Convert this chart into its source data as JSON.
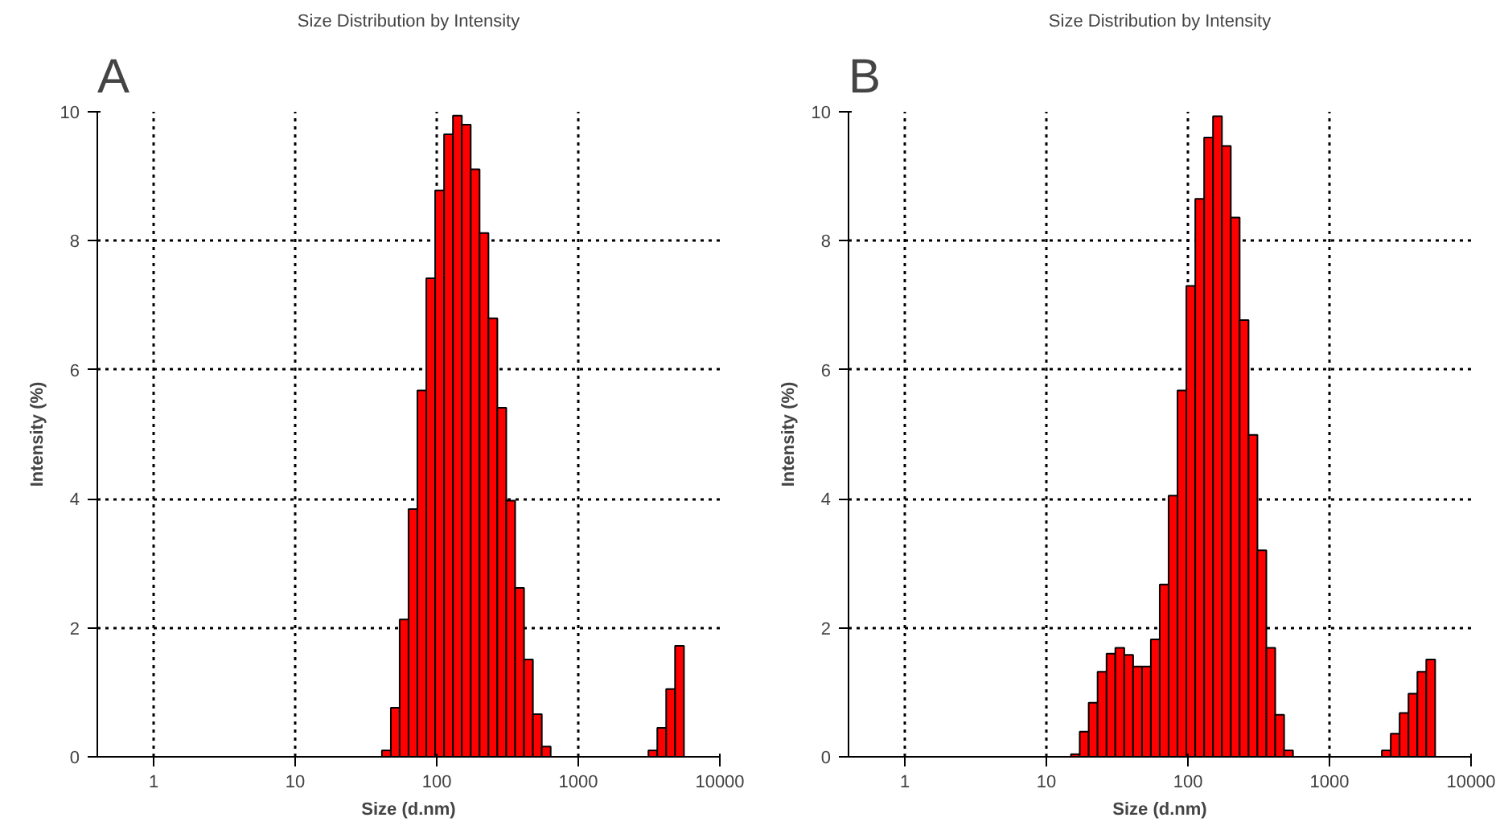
{
  "chart_data": [
    {
      "type": "histogram",
      "title": "Size Distribution by Intensity",
      "xlabel": "Size (d.nm)",
      "ylabel": "Intensity (%)",
      "annotations": [
        "A"
      ],
      "color": "#ff0000",
      "log": "x",
      "grid": true,
      "bins": [
        41.0,
        47.4,
        54.7,
        63.2,
        73.0,
        84.4,
        97.5,
        112.7,
        130.2,
        150.4,
        173.8,
        200.8,
        232.0,
        268.1,
        309.8,
        358.0,
        413.7,
        478.0,
        552.4,
        638.3,
        737.5,
        852.2,
        984.7,
        1138,
        1315,
        1519,
        1756,
        2029,
        2344,
        2708,
        3129,
        3616,
        4178,
        4828,
        5578
      ],
      "values": [
        0.1,
        0.76,
        2.13,
        3.84,
        5.68,
        7.42,
        8.78,
        9.65,
        9.94,
        9.8,
        9.11,
        8.12,
        6.8,
        5.41,
        3.97,
        2.62,
        1.51,
        0.66,
        0.16,
        0,
        0,
        0,
        0,
        0,
        0,
        0,
        0,
        0,
        0,
        0,
        0.1,
        0.45,
        1.05,
        1.72
      ],
      "xlim": [
        0.4,
        10000
      ],
      "xticks": [
        1,
        10,
        100,
        1000,
        10000
      ],
      "ylim": [
        0,
        10
      ],
      "yticks": [
        0,
        2,
        4,
        6,
        8,
        10
      ]
    },
    {
      "type": "histogram",
      "title": "Size Distribution by Intensity",
      "xlabel": "Size (d.nm)",
      "ylabel": "Intensity (%)",
      "annotations": [
        "B"
      ],
      "color": "#ff0000",
      "log": "x",
      "grid": true,
      "bins": [
        14.9,
        17.2,
        19.9,
        23.0,
        26.6,
        30.7,
        35.5,
        41.0,
        47.4,
        54.7,
        63.2,
        73.0,
        84.4,
        97.5,
        112.7,
        130.2,
        150.4,
        173.8,
        200.8,
        232.0,
        268.1,
        309.8,
        358.0,
        413.7,
        478.0,
        552.4,
        638.3,
        737.5,
        852.2,
        984.7,
        1138,
        1315,
        1519,
        1756,
        2029,
        2344,
        2708,
        3129,
        3616,
        4178,
        4828,
        5578
      ],
      "values": [
        0.04,
        0.39,
        0.84,
        1.32,
        1.6,
        1.69,
        1.58,
        1.4,
        1.4,
        1.82,
        2.67,
        4.05,
        5.68,
        7.3,
        8.65,
        9.6,
        9.93,
        9.47,
        8.36,
        6.77,
        4.99,
        3.2,
        1.69,
        0.65,
        0.1,
        0,
        0,
        0,
        0,
        0,
        0,
        0,
        0,
        0,
        0,
        0.1,
        0.36,
        0.68,
        0.98,
        1.32,
        1.51
      ],
      "xlim": [
        0.4,
        10000
      ],
      "xticks": [
        1,
        10,
        100,
        1000,
        10000
      ],
      "ylim": [
        0,
        10
      ],
      "yticks": [
        0,
        2,
        4,
        6,
        8,
        10
      ]
    }
  ]
}
